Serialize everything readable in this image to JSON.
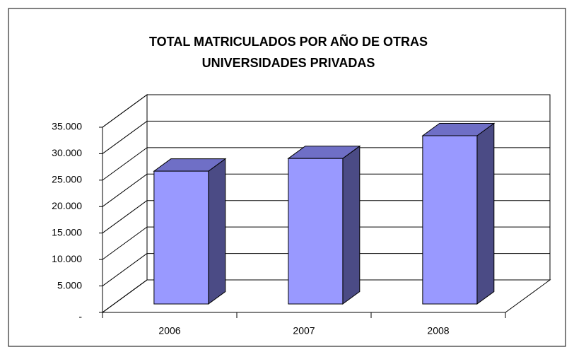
{
  "chart_data": {
    "type": "bar3d",
    "title": "TOTAL MATRICULADOS POR AÑO DE OTRAS UNIVERSIDADES PRIVADAS",
    "categories": [
      "2006",
      "2007",
      "2008"
    ],
    "values": [
      25100,
      27500,
      31800
    ],
    "color": "#9999ff",
    "top_color": "#6f6fc6",
    "side_color": "#4b4b85",
    "ylim": [
      0,
      35000
    ],
    "yticks": [
      {
        "value": 0,
        "label": "-"
      },
      {
        "value": 5000,
        "label": "5.000"
      },
      {
        "value": 10000,
        "label": "10.000"
      },
      {
        "value": 15000,
        "label": "15.000"
      },
      {
        "value": 20000,
        "label": "20.000"
      },
      {
        "value": 25000,
        "label": "25.000"
      },
      {
        "value": 30000,
        "label": "30.000"
      },
      {
        "value": 35000,
        "label": "35.000"
      }
    ],
    "grid": true
  }
}
